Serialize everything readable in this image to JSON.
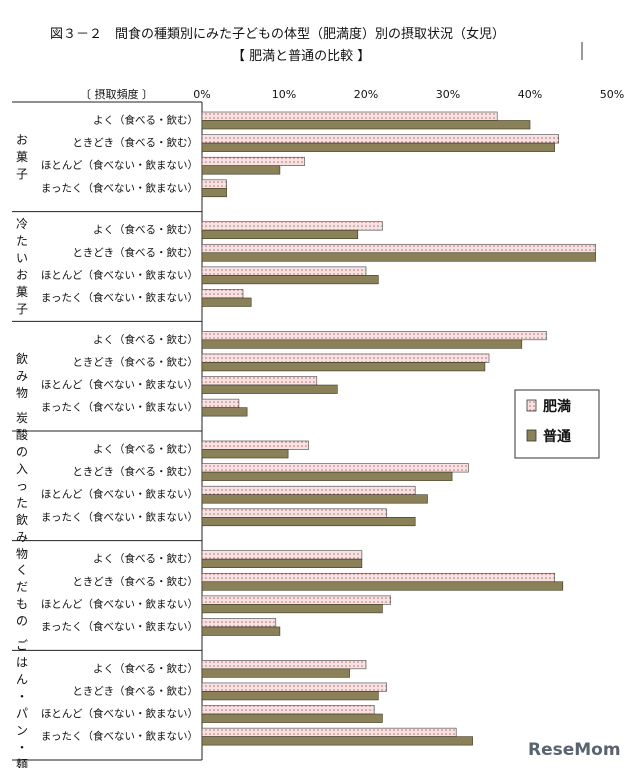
{
  "title_line1": "図３－２　間食の種類別にみた子どもの体型（肥満度）別の摂取状況（女児）",
  "title_line2": "【 肥満と普通の比較 】",
  "watermark": "ReseMom",
  "chart_data": {
    "type": "bar",
    "orientation": "horizontal",
    "header_label": "〔 摂取頻度 〕",
    "x_ticks": [
      "0%",
      "10%",
      "20%",
      "30%",
      "40%",
      "50%"
    ],
    "xlim": [
      0,
      50
    ],
    "grid": false,
    "legend_position": "right",
    "legend": [
      {
        "name": "肥満",
        "color": "#f5e3e3",
        "pattern": "dots"
      },
      {
        "name": "普通",
        "color": "#8a8159",
        "pattern": "solid"
      }
    ],
    "categories": [
      "よく（食べる・飲む）",
      "ときどき（食べる・飲む）",
      "ほとんど（食べない・飲まない）",
      "まったく（食べない・飲まない）"
    ],
    "groups": [
      {
        "name": "お菓子",
        "obese": [
          36,
          43.5,
          12.5,
          3
        ],
        "normal": [
          40,
          43,
          9.5,
          3
        ]
      },
      {
        "name": "冷たいお菓子",
        "obese": [
          22,
          48,
          20,
          5
        ],
        "normal": [
          19,
          48,
          21.5,
          6
        ]
      },
      {
        "name": "飲み物",
        "obese": [
          42,
          35,
          14,
          4.5
        ],
        "normal": [
          39,
          34.5,
          16.5,
          5.5
        ]
      },
      {
        "name": "炭酸の入った飲み物",
        "obese": [
          13,
          32.5,
          26,
          22.5
        ],
        "normal": [
          10.5,
          30.5,
          27.5,
          26
        ]
      },
      {
        "name": "くだもの",
        "obese": [
          19.5,
          43,
          23,
          9
        ],
        "normal": [
          19.5,
          44,
          22,
          9.5
        ]
      },
      {
        "name": "ごはん・パン・麺",
        "obese": [
          20,
          22.5,
          21,
          31
        ],
        "normal": [
          18,
          21.5,
          22,
          33
        ]
      }
    ]
  }
}
